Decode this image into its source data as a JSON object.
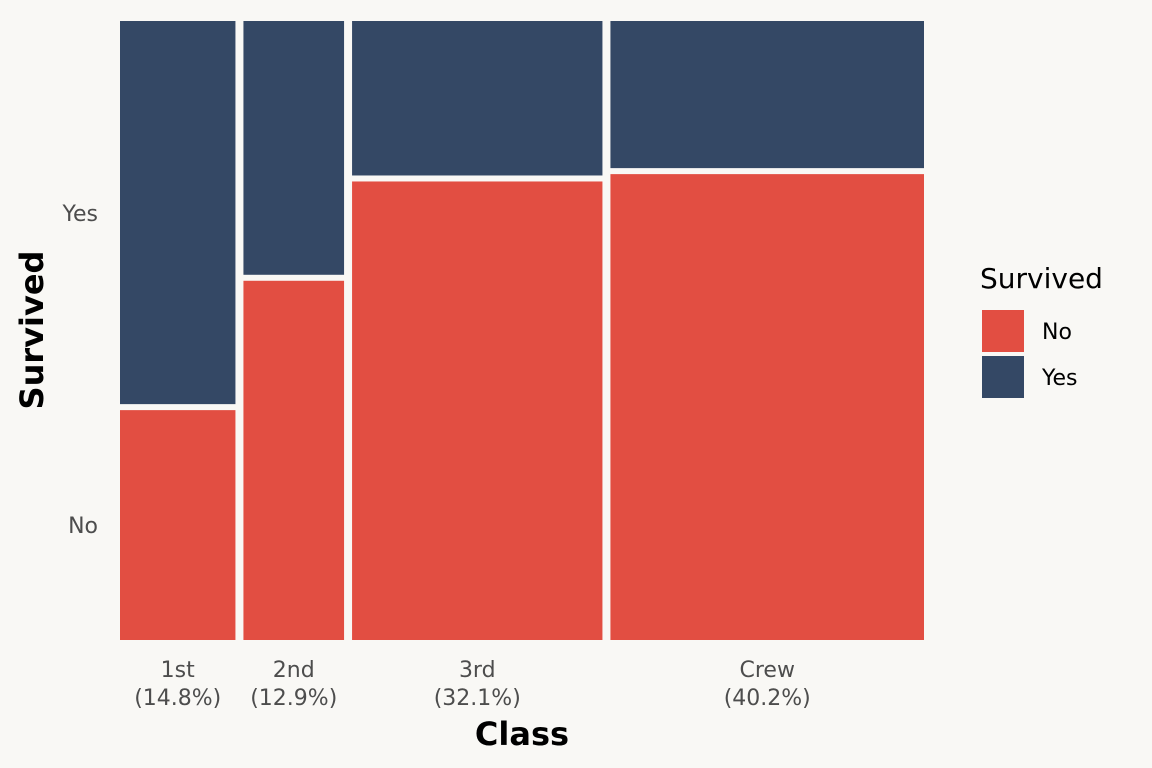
{
  "chart_data": {
    "type": "mosaic",
    "xlabel": "Class",
    "ylabel": "Survived",
    "categories": [
      "1st",
      "2nd",
      "3rd",
      "Crew"
    ],
    "category_shares_label": [
      "(14.8%)",
      "(12.9%)",
      "(32.1%)",
      "(40.2%)"
    ],
    "category_shares": [
      14.8,
      12.9,
      32.1,
      40.2
    ],
    "y_ticks": [
      "No",
      "Yes"
    ],
    "series": [
      {
        "name": "No",
        "color": "#e24e42",
        "proportions": [
          0.375,
          0.586,
          0.748,
          0.76
        ]
      },
      {
        "name": "Yes",
        "color": "#344865",
        "proportions": [
          0.625,
          0.414,
          0.252,
          0.24
        ]
      }
    ],
    "legend": {
      "title": "Survived",
      "placement": "right",
      "items": [
        "No",
        "Yes"
      ]
    },
    "grid": false
  }
}
